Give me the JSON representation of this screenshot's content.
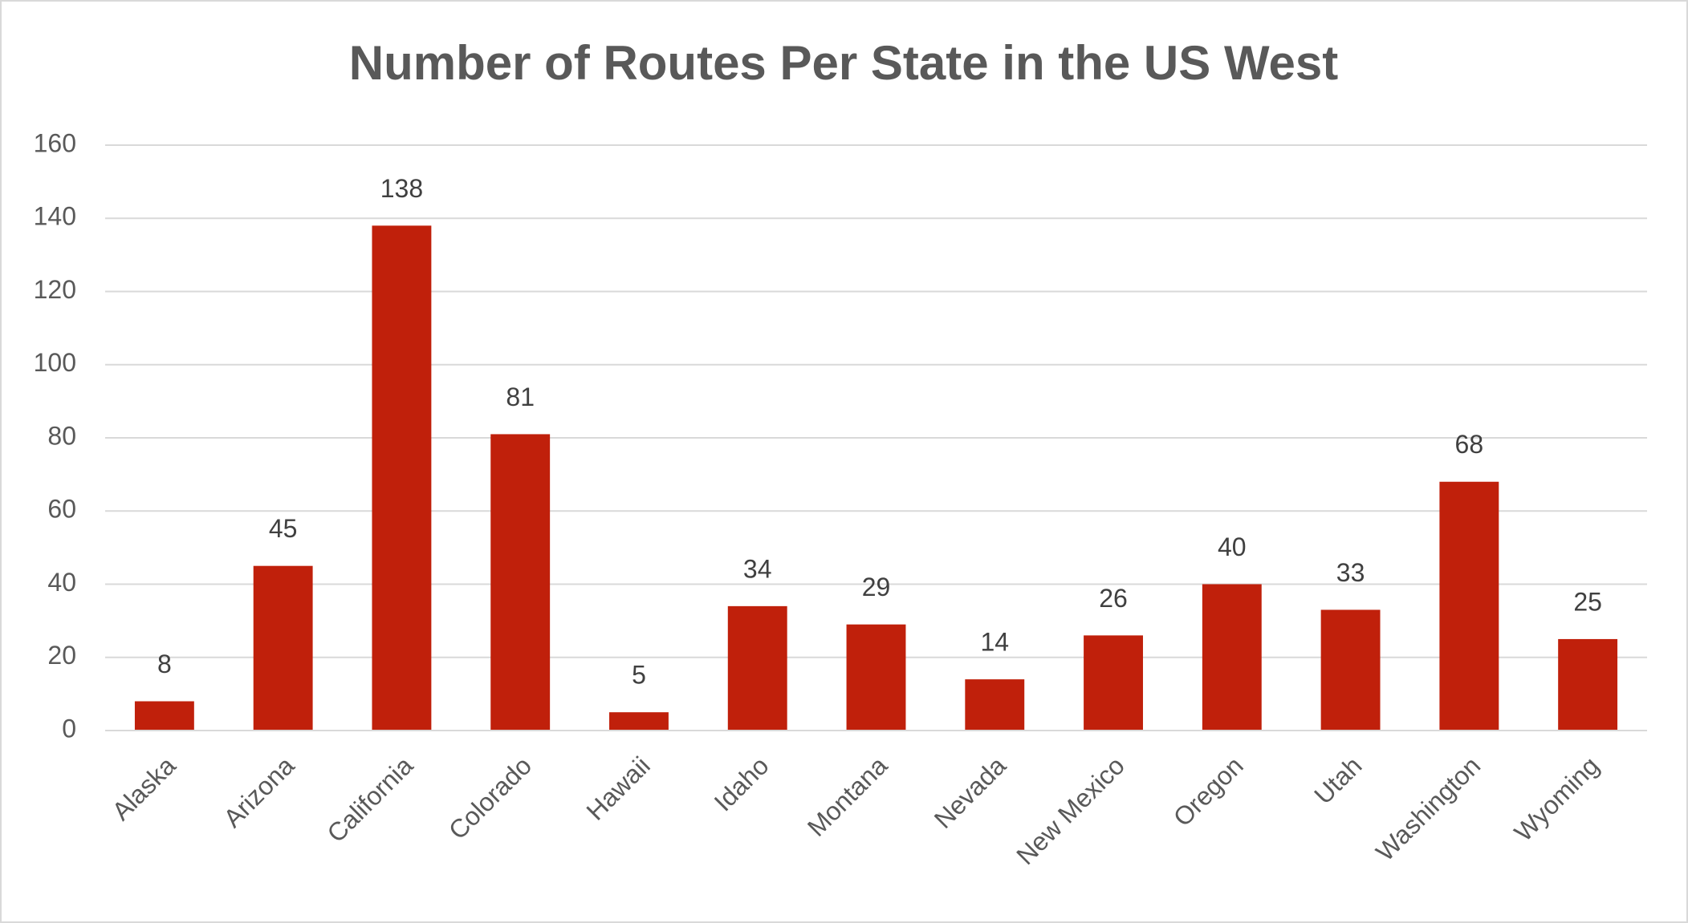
{
  "chart_data": {
    "type": "bar",
    "title": "Number of Routes Per State in the US West",
    "categories": [
      "Alaska",
      "Arizona",
      "California",
      "Colorado",
      "Hawaii",
      "Idaho",
      "Montana",
      "Nevada",
      "New Mexico",
      "Oregon",
      "Utah",
      "Washington",
      "Wyoming"
    ],
    "values": [
      8,
      45,
      138,
      81,
      5,
      34,
      29,
      14,
      26,
      40,
      33,
      68,
      25
    ],
    "color": "#c0200b",
    "ylim": [
      0,
      160
    ],
    "yticks": [
      0,
      20,
      40,
      60,
      80,
      100,
      120,
      140,
      160
    ],
    "grid": true
  }
}
